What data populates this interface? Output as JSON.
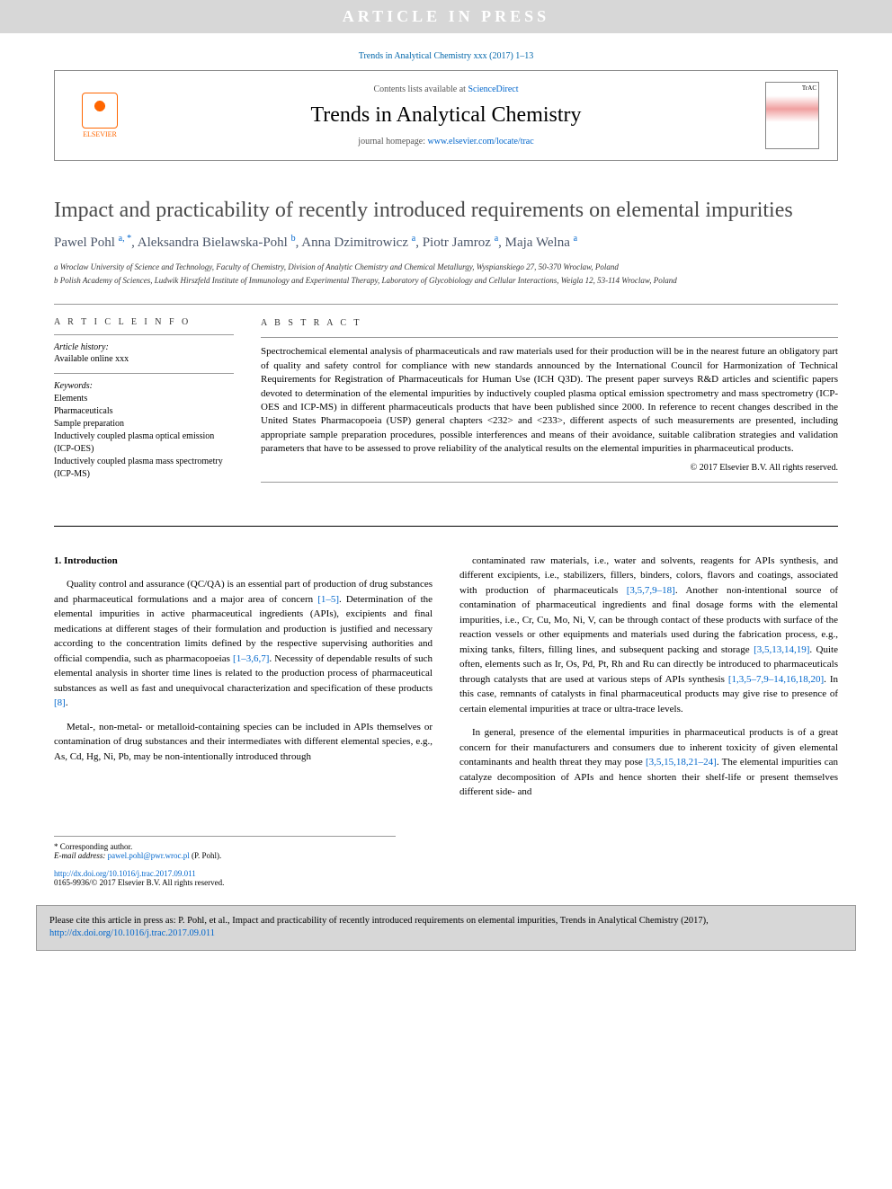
{
  "banner": {
    "text": "ARTICLE IN PRESS"
  },
  "top_citation": "Trends in Analytical Chemistry xxx (2017) 1–13",
  "header": {
    "contents_prefix": "Contents lists available at ",
    "contents_link": "ScienceDirect",
    "journal": "Trends in Analytical Chemistry",
    "homepage_prefix": "journal homepage: ",
    "homepage_link": "www.elsevier.com/locate/trac",
    "publisher_logo_label": "ELSEVIER"
  },
  "title": "Impact and practicability of recently introduced requirements on elemental impurities",
  "authors_html": "Pawel Pohl <sup>a, *</sup>, Aleksandra Bielawska-Pohl <sup>b</sup>, Anna Dzimitrowicz <sup>a</sup>, Piotr Jamroz <sup>a</sup>, Maja Welna <sup>a</sup>",
  "affiliations": {
    "a": "a Wroclaw University of Science and Technology, Faculty of Chemistry, Division of Analytic Chemistry and Chemical Metallurgy, Wyspianskiego 27, 50-370 Wroclaw, Poland",
    "b": "b Polish Academy of Sciences, Ludwik Hirszfeld Institute of Immunology and Experimental Therapy, Laboratory of Glycobiology and Cellular Interactions, Weigla 12, 53-114 Wroclaw, Poland"
  },
  "article_info": {
    "heading": "A R T I C L E   I N F O",
    "history_label": "Article history:",
    "history_value": "Available online xxx",
    "keywords_label": "Keywords:",
    "keywords": [
      "Elements",
      "Pharmaceuticals",
      "Sample preparation",
      "Inductively coupled plasma optical emission (ICP-OES)",
      "Inductively coupled plasma mass spectrometry (ICP-MS)"
    ]
  },
  "abstract": {
    "heading": "A B S T R A C T",
    "text": "Spectrochemical elemental analysis of pharmaceuticals and raw materials used for their production will be in the nearest future an obligatory part of quality and safety control for compliance with new standards announced by the International Council for Harmonization of Technical Requirements for Registration of Pharmaceuticals for Human Use (ICH Q3D). The present paper surveys R&D articles and scientific papers devoted to determination of the elemental impurities by inductively coupled plasma optical emission spectrometry and mass spectrometry (ICP-OES and ICP-MS) in different pharmaceuticals products that have been published since 2000. In reference to recent changes described in the United States Pharmacopoeia (USP) general chapters <232> and <233>, different aspects of such measurements are presented, including appropriate sample preparation procedures, possible interferences and means of their avoidance, suitable calibration strategies and validation parameters that have to be assessed to prove reliability of the analytical results on the elemental impurities in pharmaceutical products.",
    "copyright": "© 2017 Elsevier B.V. All rights reserved."
  },
  "body": {
    "section_heading": "1. Introduction",
    "col1_p1_a": "Quality control and assurance (QC/QA) is an essential part of production of drug substances and pharmaceutical formulations and a major area of concern ",
    "col1_p1_ref1": "[1–5]",
    "col1_p1_b": ". Determination of the elemental impurities in active pharmaceutical ingredients (APIs), excipients and final medications at different stages of their formulation and production is justified and necessary according to the concentration limits defined by the respective supervising authorities and official compendia, such as pharmacopoeias ",
    "col1_p1_ref2": "[1–3,6,7]",
    "col1_p1_c": ". Necessity of dependable results of such elemental analysis in shorter time lines is related to the production process of pharmaceutical substances as well as fast and unequivocal characterization and specification of these products ",
    "col1_p1_ref3": "[8]",
    "col1_p1_d": ".",
    "col1_p2": "Metal-, non-metal- or metalloid-containing species can be included in APIs themselves or contamination of drug substances and their intermediates with different elemental species, e.g., As, Cd, Hg, Ni, Pb, may be non-intentionally introduced through",
    "col2_p1_a": "contaminated raw materials, i.e., water and solvents, reagents for APIs synthesis, and different excipients, i.e., stabilizers, fillers, binders, colors, flavors and coatings, associated with production of pharmaceuticals ",
    "col2_p1_ref1": "[3,5,7,9–18]",
    "col2_p1_b": ". Another non-intentional source of contamination of pharmaceutical ingredients and final dosage forms with the elemental impurities, i.e., Cr, Cu, Mo, Ni, V, can be through contact of these products with surface of the reaction vessels or other equipments and materials used during the fabrication process, e.g., mixing tanks, filters, filling lines, and subsequent packing and storage ",
    "col2_p1_ref2": "[3,5,13,14,19]",
    "col2_p1_c": ". Quite often, elements such as Ir, Os, Pd, Pt, Rh and Ru can directly be introduced to pharmaceuticals through catalysts that are used at various steps of APIs synthesis ",
    "col2_p1_ref3": "[1,3,5–7,9–14,16,18,20]",
    "col2_p1_d": ". In this case, remnants of catalysts in final pharmaceutical products may give rise to presence of certain elemental impurities at trace or ultra-trace levels.",
    "col2_p2_a": "In general, presence of the elemental impurities in pharmaceutical products is of a great concern for their manufacturers and consumers due to inherent toxicity of given elemental contaminants and health threat they may pose ",
    "col2_p2_ref1": "[3,5,15,18,21–24]",
    "col2_p2_b": ". The elemental impurities can catalyze decomposition of APIs and hence shorten their shelf-life or present themselves different side- and"
  },
  "footnotes": {
    "corr": "* Corresponding author.",
    "email_label": "E-mail address: ",
    "email": "pawel.pohl@pwr.wroc.pl",
    "email_owner": " (P. Pohl)."
  },
  "doi": {
    "url": "http://dx.doi.org/10.1016/j.trac.2017.09.011",
    "issn_line": "0165-9936/© 2017 Elsevier B.V. All rights reserved."
  },
  "cite_box": {
    "text_a": "Please cite this article in press as: P. Pohl, et al., Impact and practicability of recently introduced requirements on elemental impurities, Trends in Analytical Chemistry (2017), ",
    "link": "http://dx.doi.org/10.1016/j.trac.2017.09.011"
  },
  "colors": {
    "banner_bg": "#d7d7d7",
    "link": "#0066cc",
    "elsevier": "#ff6600",
    "text": "#000000",
    "title_gray": "#4a4a4a"
  }
}
